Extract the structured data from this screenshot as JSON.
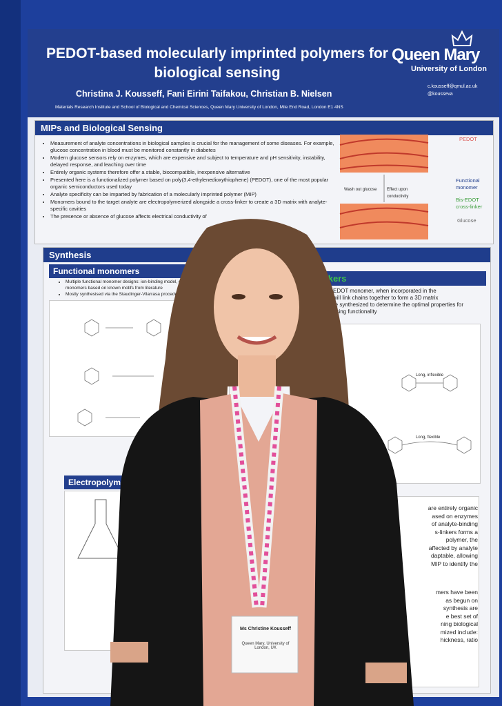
{
  "poster": {
    "title": [
      "PEDOT-based molecularly imprinted polymers for",
      "biological sensing"
    ],
    "authors": "Christina J. Kousseff, Fani Eirini Taifakou, Christian B. Nielsen",
    "affiliation": "Materials Research Institute and School of Biological and Chemical Sciences, Queen Mary University of London, Mile End Road, London E1 4NS",
    "logo": [
      "Queen Mary",
      "University of London"
    ],
    "contact": [
      "c.kousseff@qmul.ac.uk",
      "@kousseva"
    ],
    "sections": [
      {
        "heading": "MIPs and Biological Sensing",
        "bullets": [
          "Measurement of analyte concentrations in biological samples is crucial for the management of some diseases. For example, glucose concentration in blood must be monitored constantly in diabetes",
          "Modern glucose sensors rely on enzymes, which are expensive and subject to temperature and pH sensitivity, instability, delayed response, and leaching over time",
          "Entirely organic systems therefore offer a stable, biocompatible, inexpensive alternative",
          "Presented here is a functionalized polymer based on poly(3,4-ethylenedioxythiophene) (PEDOT), one of the most popular organic semiconductors used today",
          "Analyte specificity can be imparted by fabrication of a molecularly imprinted polymer (MIP)",
          "Monomers bound to the target analyte are electropolymerized alongside a cross-linker to create a 3D matrix with analyte-specific cavities",
          "The presence or absence of glucose affects electrical conductivity of"
        ],
        "figure_labels": [
          "PEDOT",
          "Functional monomer",
          "Bis-EDOT cross-linker",
          "Glucose",
          "Wash out glucose",
          "Effect upon conductivity"
        ]
      },
      {
        "heading": "Synthesis",
        "subheadings": [
          "Functional monomers",
          "s-linkers"
        ],
        "bullets": [
          "Multiple functional monomer designs: ion-binding model, gluco",
          "monomers based on known motifs from literature",
          "Mostly synthesised via the Staudinger-Vilarrasa procedure"
        ],
        "right_text": [
          "EDOT monomer, when incorporated in the",
          "will link chains together to form a 3D matrix",
          "re synthesized to determine the optimal properties for",
          "nsing functionality"
        ],
        "linker_labels": [
          "Long, inflexible",
          "Long, flexible"
        ]
      },
      {
        "heading": "Electropolymerization",
        "right_text": [
          "are entirely organic",
          "ased on enzymes",
          "of analyte-binding",
          "s-linkers forms a",
          "polymer, the",
          "affected by analyte",
          "daptable, allowing",
          "MIP to identify the",
          "mers have been",
          "as begun on",
          "synthesis are",
          "e best set of",
          "ning biological",
          "mized include:",
          "hickness, ratio"
        ]
      }
    ]
  },
  "badge": {
    "name": "Ms Christine Kousseff",
    "org": "Queen Mary, University of London, UK"
  }
}
